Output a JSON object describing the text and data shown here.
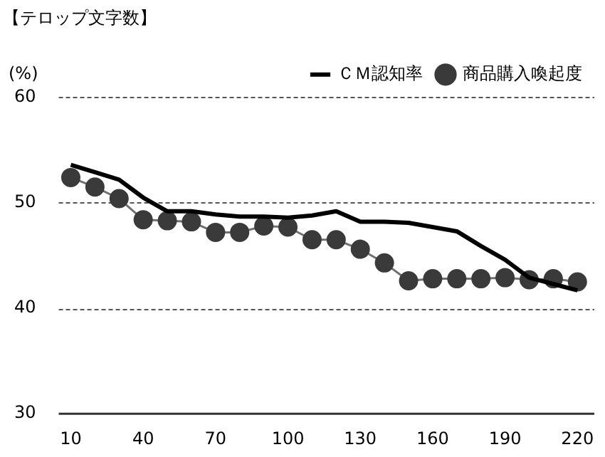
{
  "chart_data": {
    "type": "line",
    "title": "【テロップ文字数】",
    "ylabel": "(%)",
    "x": [
      10,
      20,
      30,
      40,
      50,
      60,
      70,
      80,
      90,
      100,
      110,
      120,
      130,
      140,
      150,
      160,
      170,
      180,
      190,
      200,
      210,
      220
    ],
    "series": [
      {
        "name": "ＣＭ認知率",
        "color": "#000000",
        "marker": "none",
        "values": [
          53.6,
          52.9,
          52.2,
          50.5,
          49.2,
          49.2,
          48.9,
          48.7,
          48.7,
          48.6,
          48.8,
          49.2,
          48.2,
          48.2,
          48.1,
          47.7,
          47.3,
          45.9,
          44.6,
          42.9,
          42.3,
          41.7
        ]
      },
      {
        "name": "商品購入喚起度",
        "color": "#3a3a3a",
        "marker": "circle",
        "values": [
          52.4,
          51.5,
          50.4,
          48.4,
          48.3,
          48.2,
          47.2,
          47.2,
          47.8,
          47.7,
          46.5,
          46.5,
          45.6,
          44.3,
          42.6,
          42.8,
          42.8,
          42.8,
          42.9,
          42.7,
          42.8,
          42.5
        ]
      }
    ],
    "xlim": [
      5,
      227
    ],
    "xticks": [
      10,
      40,
      70,
      100,
      130,
      160,
      190,
      220
    ],
    "ylim": [
      30,
      60
    ],
    "yticks": [
      30,
      40,
      50,
      60
    ],
    "grid": "y",
    "legend": "top right"
  }
}
